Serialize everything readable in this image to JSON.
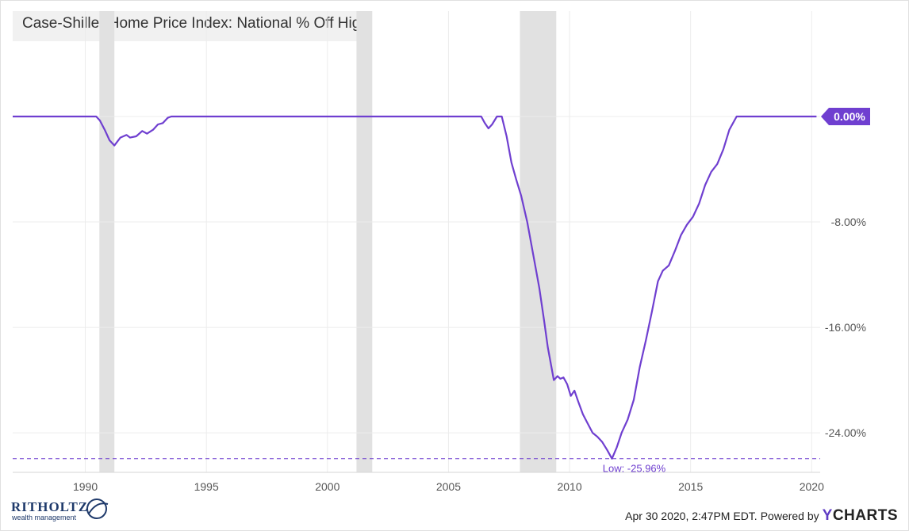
{
  "chart_data": {
    "type": "line",
    "title": "Case-Shiller Home Price Index: National % Off High",
    "xlim": [
      1987.0,
      2020.35
    ],
    "ylim": [
      -27.0,
      8.0
    ],
    "x_ticks": [
      {
        "value": 1990,
        "label": "1990"
      },
      {
        "value": 1995,
        "label": "1995"
      },
      {
        "value": 2000,
        "label": "2000"
      },
      {
        "value": 2005,
        "label": "2005"
      },
      {
        "value": 2010,
        "label": "2010"
      },
      {
        "value": 2015,
        "label": "2015"
      },
      {
        "value": 2020,
        "label": "2020"
      }
    ],
    "y_ticks": [
      {
        "value": 0,
        "label": "0.00%"
      },
      {
        "value": -8,
        "label": "-8.00%"
      },
      {
        "value": -16,
        "label": "-16.00%"
      },
      {
        "value": -24,
        "label": "-24.00%"
      }
    ],
    "recessions": [
      [
        1990.58,
        1991.2
      ],
      [
        2001.2,
        2001.85
      ],
      [
        2007.95,
        2009.45
      ]
    ],
    "series": [
      {
        "color": "#6f3fd0",
        "last_value_label": "0.00%",
        "points": [
          [
            1987.0,
            0
          ],
          [
            1990.45,
            0
          ],
          [
            1990.6,
            -0.3
          ],
          [
            1990.8,
            -1.0
          ],
          [
            1991.0,
            -1.8
          ],
          [
            1991.2,
            -2.2
          ],
          [
            1991.45,
            -1.6
          ],
          [
            1991.7,
            -1.4
          ],
          [
            1991.85,
            -1.6
          ],
          [
            1992.1,
            -1.5
          ],
          [
            1992.35,
            -1.1
          ],
          [
            1992.55,
            -1.3
          ],
          [
            1992.8,
            -1.0
          ],
          [
            1993.0,
            -0.6
          ],
          [
            1993.2,
            -0.5
          ],
          [
            1993.4,
            -0.1
          ],
          [
            1993.55,
            0
          ],
          [
            2006.35,
            0
          ],
          [
            2006.5,
            -0.5
          ],
          [
            2006.65,
            -0.9
          ],
          [
            2006.8,
            -0.6
          ],
          [
            2007.0,
            0
          ],
          [
            2007.2,
            0
          ],
          [
            2007.4,
            -1.5
          ],
          [
            2007.6,
            -3.5
          ],
          [
            2007.8,
            -4.8
          ],
          [
            2008.0,
            -6.0
          ],
          [
            2008.25,
            -8.0
          ],
          [
            2008.5,
            -10.5
          ],
          [
            2008.75,
            -13.0
          ],
          [
            2008.95,
            -15.5
          ],
          [
            2009.1,
            -17.5
          ],
          [
            2009.25,
            -19.0
          ],
          [
            2009.35,
            -20.0
          ],
          [
            2009.5,
            -19.7
          ],
          [
            2009.62,
            -19.9
          ],
          [
            2009.75,
            -19.8
          ],
          [
            2009.9,
            -20.3
          ],
          [
            2010.05,
            -21.2
          ],
          [
            2010.2,
            -20.8
          ],
          [
            2010.35,
            -21.6
          ],
          [
            2010.55,
            -22.6
          ],
          [
            2010.75,
            -23.3
          ],
          [
            2010.95,
            -24.0
          ],
          [
            2011.15,
            -24.3
          ],
          [
            2011.35,
            -24.7
          ],
          [
            2011.55,
            -25.3
          ],
          [
            2011.75,
            -25.96
          ],
          [
            2011.95,
            -25.1
          ],
          [
            2012.15,
            -24.0
          ],
          [
            2012.4,
            -23.0
          ],
          [
            2012.65,
            -21.5
          ],
          [
            2012.9,
            -19.0
          ],
          [
            2013.15,
            -17.0
          ],
          [
            2013.4,
            -14.8
          ],
          [
            2013.65,
            -12.5
          ],
          [
            2013.85,
            -11.7
          ],
          [
            2014.1,
            -11.3
          ],
          [
            2014.35,
            -10.2
          ],
          [
            2014.6,
            -9.0
          ],
          [
            2014.85,
            -8.2
          ],
          [
            2015.1,
            -7.6
          ],
          [
            2015.35,
            -6.6
          ],
          [
            2015.6,
            -5.2
          ],
          [
            2015.85,
            -4.2
          ],
          [
            2016.1,
            -3.6
          ],
          [
            2016.35,
            -2.5
          ],
          [
            2016.6,
            -1.0
          ],
          [
            2016.9,
            0
          ],
          [
            2020.2,
            0
          ]
        ]
      }
    ],
    "low": {
      "value": -25.96,
      "x": 2011.75,
      "label": "Low: -25.96%"
    }
  },
  "footer": {
    "timestamp": "Apr 30 2020, 2:47PM EDT.",
    "powered_by": "Powered by",
    "brand_y": "Y",
    "brand_rest": "CHARTS"
  },
  "logo": {
    "name": "RITHOLTZ",
    "sub": "wealth management"
  },
  "colors": {
    "line": "#6f3fd0",
    "recession": "#e1e1e1",
    "grid": "#ececec",
    "low_line": "#6f3fd0"
  }
}
